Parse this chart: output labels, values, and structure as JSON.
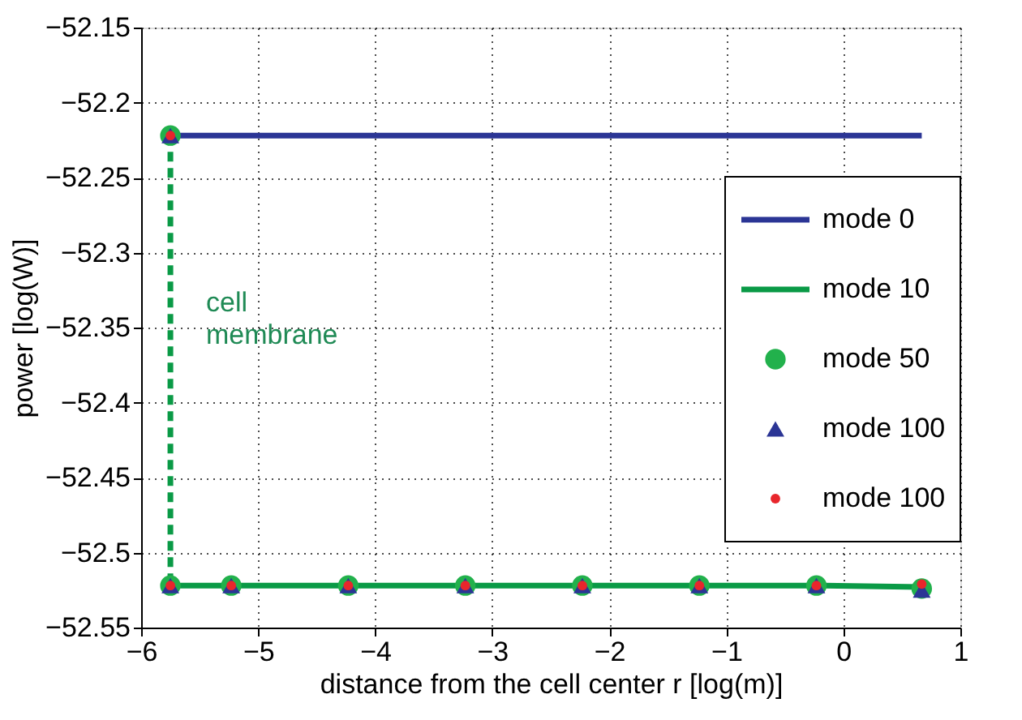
{
  "chart_data": {
    "type": "line",
    "xlabel": "distance from the cell center r [log(m)]",
    "ylabel": "power [log(W)]",
    "xlim": [
      -6,
      1
    ],
    "xticks": [
      -6,
      -5,
      -4,
      -3,
      -2,
      -1,
      0,
      1
    ],
    "ylim": [
      -52.55,
      -52.15
    ],
    "yticks": [
      -52.55,
      -52.5,
      -52.45,
      -52.4,
      -52.35,
      -52.3,
      -52.25,
      -52.2,
      -52.15
    ],
    "grid": true,
    "legend": "right",
    "series": [
      {
        "name": "mode 0",
        "line_style": "solid",
        "color": "#2b3595",
        "x": [
          -5.75,
          0.67
        ],
        "values": [
          -52.222,
          -52.222
        ]
      },
      {
        "name": "mode 10",
        "line_style": "solid",
        "color": "#0a9a46",
        "x": [
          -5.75,
          -5.23,
          -4.23,
          -3.23,
          -2.23,
          -1.23,
          -0.23,
          0.67
        ],
        "values": [
          -52.522,
          -52.522,
          -52.522,
          -52.522,
          -52.522,
          -52.522,
          -52.522,
          -52.523
        ]
      },
      {
        "line_style": "dashed",
        "color": "#0a9a46",
        "x": [
          -5.75,
          -5.75
        ],
        "values": [
          -52.222,
          -52.522
        ]
      },
      {
        "name": "mode 50",
        "type": "scatter",
        "marker": "circle",
        "color": "#22b14c",
        "x": [
          -5.75,
          -5.75,
          -5.23,
          -4.23,
          -3.23,
          -2.23,
          -1.23,
          -0.23,
          0.67
        ],
        "values": [
          -52.222,
          -52.522,
          -52.522,
          -52.522,
          -52.522,
          -52.522,
          -52.522,
          -52.522,
          -52.524
        ]
      },
      {
        "name": "mode 100",
        "type": "scatter",
        "marker": "triangle",
        "color": "#2b3595",
        "x": [
          -5.75,
          -5.75,
          -5.23,
          -4.23,
          -3.23,
          -2.23,
          -1.23,
          -0.23,
          0.67
        ],
        "values": [
          -52.222,
          -52.522,
          -52.522,
          -52.522,
          -52.522,
          -52.522,
          -52.522,
          -52.522,
          -52.525
        ]
      },
      {
        "name": "mode 100",
        "type": "scatter",
        "marker": "circle",
        "color": "#e8262c",
        "x": [
          -5.75,
          -5.75,
          -5.23,
          -4.23,
          -3.23,
          -2.23,
          -1.23,
          -0.23,
          0.67
        ],
        "values": [
          -52.222,
          -52.522,
          -52.522,
          -52.522,
          -52.522,
          -52.522,
          -52.522,
          -52.522,
          -52.521
        ]
      }
    ],
    "annotations": [
      "cell\nmembrane"
    ]
  }
}
